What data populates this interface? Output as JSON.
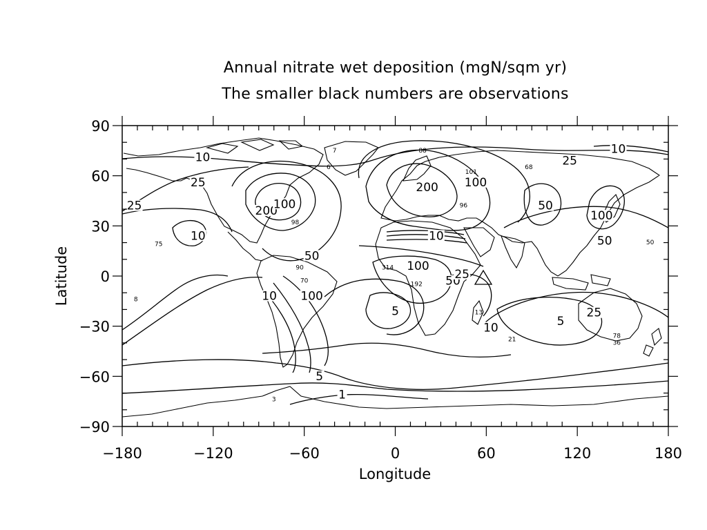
{
  "title": "Annual nitrate wet deposition (mgN/sqm yr)",
  "subtitle": "The smaller black numbers are observations",
  "chart_data": {
    "type": "contour-map",
    "xlabel": "Longitude",
    "ylabel": "Latitude",
    "xlim": [
      -180,
      180
    ],
    "ylim": [
      -90,
      90
    ],
    "xticks": [
      -180,
      -120,
      -60,
      0,
      60,
      120,
      180
    ],
    "yticks": [
      -90,
      -60,
      -30,
      0,
      30,
      60,
      90
    ],
    "xtick_labels": [
      "−180",
      "−120",
      "−60",
      "0",
      "60",
      "120",
      "180"
    ],
    "ytick_labels": [
      "−90",
      "−60",
      "−30",
      "0",
      "30",
      "60",
      "90"
    ],
    "grid": false,
    "contour_labels": [
      {
        "text": "10",
        "lon": 147,
        "lat": 75
      },
      {
        "text": "25",
        "lon": 115,
        "lat": 68
      },
      {
        "text": "10",
        "lon": -127,
        "lat": 70
      },
      {
        "text": "25",
        "lon": -130,
        "lat": 55
      },
      {
        "text": "25",
        "lon": -172,
        "lat": 41
      },
      {
        "text": "200",
        "lon": -85,
        "lat": 38
      },
      {
        "text": "100",
        "lon": -73,
        "lat": 42
      },
      {
        "text": "200",
        "lon": 21,
        "lat": 52
      },
      {
        "text": "100",
        "lon": 53,
        "lat": 55
      },
      {
        "text": "50",
        "lon": 99,
        "lat": 41
      },
      {
        "text": "100",
        "lon": 136,
        "lat": 35
      },
      {
        "text": "50",
        "lon": 138,
        "lat": 20
      },
      {
        "text": "50",
        "lon": -55,
        "lat": 11
      },
      {
        "text": "10",
        "lon": -130,
        "lat": 23
      },
      {
        "text": "10",
        "lon": 27,
        "lat": 23
      },
      {
        "text": "100",
        "lon": 15,
        "lat": 5
      },
      {
        "text": "50",
        "lon": 38,
        "lat": -4
      },
      {
        "text": "25",
        "lon": 44,
        "lat": 0
      },
      {
        "text": "100",
        "lon": -55,
        "lat": -13
      },
      {
        "text": "10",
        "lon": -83,
        "lat": -13
      },
      {
        "text": "5",
        "lon": 0,
        "lat": -22
      },
      {
        "text": "10",
        "lon": 63,
        "lat": -32
      },
      {
        "text": "5",
        "lon": 109,
        "lat": -28
      },
      {
        "text": "25",
        "lon": 131,
        "lat": -23
      },
      {
        "text": "5",
        "lon": -50,
        "lat": -61
      },
      {
        "text": "1",
        "lon": -35,
        "lat": -72
      }
    ],
    "observations": [
      {
        "text": "7",
        "lon": -40,
        "lat": 74
      },
      {
        "text": "6",
        "lon": -44,
        "lat": 64
      },
      {
        "text": "88",
        "lon": 18,
        "lat": 74
      },
      {
        "text": "101",
        "lon": 50,
        "lat": 61
      },
      {
        "text": "68",
        "lon": 88,
        "lat": 64
      },
      {
        "text": "96",
        "lon": 45,
        "lat": 41
      },
      {
        "text": "98",
        "lon": -66,
        "lat": 31
      },
      {
        "text": "75",
        "lon": -156,
        "lat": 18
      },
      {
        "text": "90",
        "lon": -63,
        "lat": 4
      },
      {
        "text": "70",
        "lon": -60,
        "lat": -4
      },
      {
        "text": "314",
        "lon": -5,
        "lat": 4
      },
      {
        "text": "192",
        "lon": 14,
        "lat": -6
      },
      {
        "text": "13",
        "lon": 55,
        "lat": -23
      },
      {
        "text": "21",
        "lon": 77,
        "lat": -39
      },
      {
        "text": "50",
        "lon": 168,
        "lat": 19
      },
      {
        "text": "78",
        "lon": 146,
        "lat": -37
      },
      {
        "text": "36",
        "lon": 146,
        "lat": -41
      },
      {
        "text": "8",
        "lon": -171,
        "lat": -15
      },
      {
        "text": "3",
        "lon": -80,
        "lat": -75
      }
    ]
  }
}
